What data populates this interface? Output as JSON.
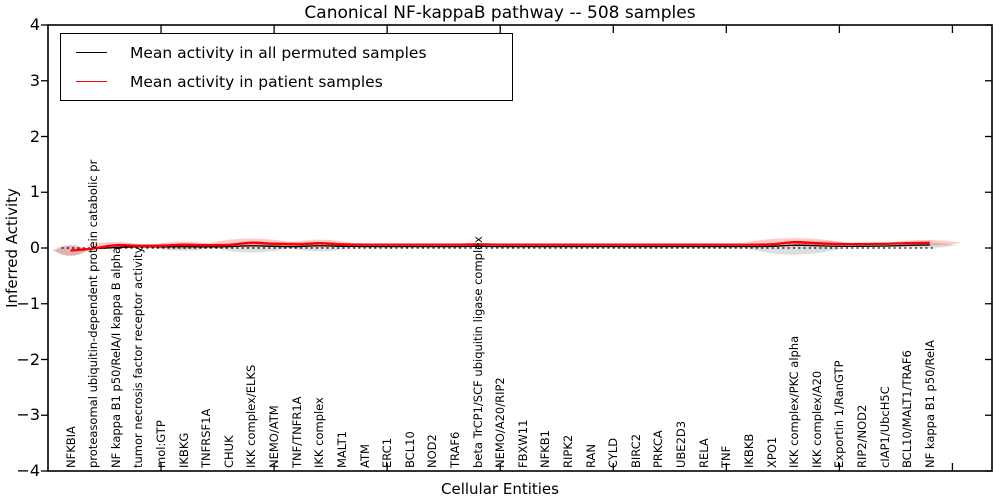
{
  "title": "Canonical NF-kappaB pathway -- 508 samples",
  "axes": {
    "x_label": "Cellular Entities",
    "y_label": "Inferred Activity",
    "y_tick_labels": [
      "4",
      "3",
      "2",
      "1",
      "0",
      "−1",
      "−2",
      "−3",
      "−4"
    ],
    "y_tick_values": [
      4,
      3,
      2,
      1,
      0,
      -1,
      -2,
      -3,
      -4
    ]
  },
  "legend": {
    "items": [
      {
        "label": "Mean activity in all permuted samples",
        "color": "#000000"
      },
      {
        "label": "Mean activity in patient samples",
        "color": "#ff0000"
      }
    ]
  },
  "colors": {
    "permuted_line": "#000000",
    "patient_line": "#ff0000",
    "violin_grey_fill": "rgba(0,0,0,0.13)",
    "violin_red_fill": "rgba(255,0,0,0.20)",
    "axis": "#000000",
    "background": "#ffffff"
  },
  "chart_data": {
    "type": "line",
    "title": "Canonical NF-kappaB pathway -- 508 samples",
    "xlabel": "Cellular Entities",
    "ylabel": "Inferred Activity",
    "ylim": [
      -4,
      4
    ],
    "xlim": [
      0,
      41.75
    ],
    "grid": false,
    "legend_position": "upper left",
    "zero_line": {
      "y": 0,
      "style": "dotted",
      "color": "#000000"
    },
    "x_major_ticks": [
      5,
      10,
      15,
      20,
      25,
      30,
      35,
      40
    ],
    "categories": [
      "NFKBIA",
      "proteasomal ubiquitin-dependent protein catabolic pr",
      "NF kappa B1 p50/RelA/I kappa B alpha",
      "tumor necrosis factor receptor activity",
      "mol:GTP",
      "IKBKG",
      "TNFRSF1A",
      "CHUK",
      "IKK complex/ELKS",
      "NEMO/ATM",
      "TNF/TNFR1A",
      "IKK complex",
      "MALT1",
      "ATM",
      "ERC1",
      "BCL10",
      "NOD2",
      "TRAF6",
      "beta TrCP1/SCF ubiquitin ligase complex",
      "NEMO/A20/RIP2",
      "FBXW11",
      "NFKB1",
      "RIPK2",
      "RAN",
      "CYLD",
      "BIRC2",
      "PRKCA",
      "UBE2D3",
      "RELA",
      "TNF",
      "IKBKB",
      "XPO1",
      "IKK complex/PKC alpha",
      "IKK complex/A20",
      "Exportin 1/RanGTP",
      "RIP2/NOD2",
      "cIAP1/UbcH5C",
      "BCL10/MALT1/TRAF6",
      "NF kappa B1 p50/RelA"
    ],
    "series": [
      {
        "name": "Mean activity in all permuted samples",
        "color": "#000000",
        "values": [
          -0.04,
          -0.015,
          0.01,
          0.02,
          0.02,
          0.025,
          0.02,
          0.025,
          0.04,
          0.03,
          0.025,
          0.04,
          0.03,
          0.025,
          0.025,
          0.025,
          0.025,
          0.025,
          0.03,
          0.025,
          0.025,
          0.025,
          0.025,
          0.025,
          0.025,
          0.025,
          0.025,
          0.025,
          0.025,
          0.025,
          0.025,
          0.03,
          0.05,
          0.04,
          0.03,
          0.03,
          0.035,
          0.045,
          0.055
        ]
      },
      {
        "name": "Mean activity in patient samples",
        "color": "#ff0000",
        "values": [
          -0.045,
          -0.01,
          0.05,
          0.04,
          0.04,
          0.06,
          0.05,
          0.055,
          0.095,
          0.075,
          0.065,
          0.085,
          0.065,
          0.06,
          0.06,
          0.06,
          0.06,
          0.06,
          0.065,
          0.06,
          0.06,
          0.06,
          0.06,
          0.06,
          0.06,
          0.06,
          0.06,
          0.06,
          0.06,
          0.06,
          0.06,
          0.065,
          0.105,
          0.085,
          0.07,
          0.07,
          0.075,
          0.085,
          0.095
        ]
      }
    ],
    "violins": [
      {
        "x": 1,
        "center": -0.04,
        "half_width": 0.8,
        "half_height": 0.1,
        "color": "grey"
      },
      {
        "x": 6,
        "center": 0.0,
        "half_width": 1.3,
        "half_height": 0.05,
        "color": "grey"
      },
      {
        "x": 9,
        "center": 0.01,
        "half_width": 1.8,
        "half_height": 0.09,
        "color": "grey"
      },
      {
        "x": 12,
        "center": 0.01,
        "half_width": 1.4,
        "half_height": 0.07,
        "color": "grey"
      },
      {
        "x": 33,
        "center": -0.01,
        "half_width": 2.1,
        "half_height": 0.11,
        "color": "grey"
      },
      {
        "x": 38.8,
        "center": 0.05,
        "half_width": 1.4,
        "half_height": 0.05,
        "color": "grey"
      },
      {
        "x": 1,
        "center": -0.05,
        "half_width": 0.7,
        "half_height": 0.09,
        "color": "red"
      },
      {
        "x": 3,
        "center": 0.05,
        "half_width": 1.3,
        "half_height": 0.06,
        "color": "red"
      },
      {
        "x": 4.7,
        "center": 0.04,
        "half_width": 1.4,
        "half_height": 0.035,
        "color": "red"
      },
      {
        "x": 6,
        "center": 0.05,
        "half_width": 1.5,
        "half_height": 0.065,
        "color": "red"
      },
      {
        "x": 7.5,
        "center": 0.05,
        "half_width": 1.4,
        "half_height": 0.03,
        "color": "red"
      },
      {
        "x": 9,
        "center": 0.09,
        "half_width": 1.9,
        "half_height": 0.08,
        "color": "red"
      },
      {
        "x": 10.5,
        "center": 0.07,
        "half_width": 1.4,
        "half_height": 0.04,
        "color": "red"
      },
      {
        "x": 12,
        "center": 0.08,
        "half_width": 1.5,
        "half_height": 0.07,
        "color": "red"
      },
      {
        "x": 33,
        "center": 0.1,
        "half_width": 2.2,
        "half_height": 0.08,
        "color": "red"
      },
      {
        "x": 34.3,
        "center": 0.08,
        "half_width": 1.4,
        "half_height": 0.04,
        "color": "red"
      },
      {
        "x": 38.8,
        "center": 0.09,
        "half_width": 1.6,
        "half_height": 0.055,
        "color": "red"
      }
    ]
  }
}
